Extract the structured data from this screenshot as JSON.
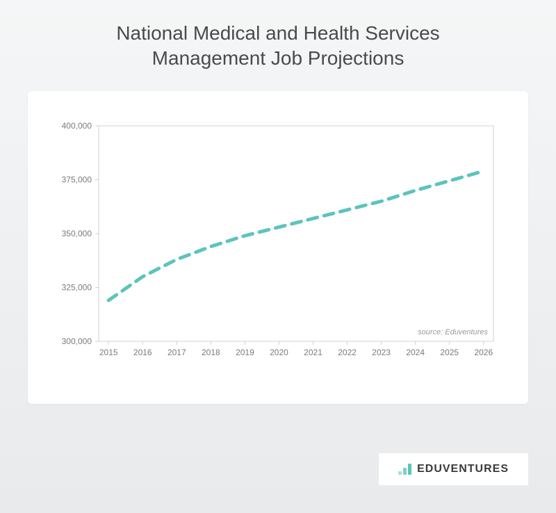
{
  "title_line1": "National Medical and Health Services",
  "title_line2": "Management Job Projections",
  "title_fontsize": 28,
  "title_color": "#4a4a4a",
  "chart": {
    "type": "line",
    "background_color": "#ffffff",
    "plot_border_color": "#d0d0d0",
    "plot_border_width": 1,
    "x_categories": [
      "2015",
      "2016",
      "2017",
      "2018",
      "2019",
      "2020",
      "2021",
      "2022",
      "2023",
      "2024",
      "2025",
      "2026"
    ],
    "y_values": [
      319000,
      330000,
      338000,
      344000,
      349000,
      353000,
      357000,
      361000,
      365000,
      370000,
      374500,
      379000
    ],
    "line_color": "#5cc4bb",
    "line_width": 5,
    "line_dash": "14 10",
    "ylim": [
      300000,
      400000
    ],
    "ytick_step": 25000,
    "ytick_labels": [
      "300,000",
      "325,000",
      "350,000",
      "375,000",
      "400,000"
    ],
    "tick_label_fontsize": 12,
    "tick_label_color": "#7a7a7a",
    "source_text": "source: Eduventures",
    "source_fontsize": 11
  },
  "logo": {
    "text": "EDUVENTURES",
    "text_color": "#3a3a3a",
    "text_fontsize": 16,
    "bar_heights": [
      5,
      10,
      16
    ],
    "bar_color_light": "#a9ddd9",
    "bar_color_mid": "#7fd0c9",
    "bar_color_dark": "#5cc4bb"
  }
}
